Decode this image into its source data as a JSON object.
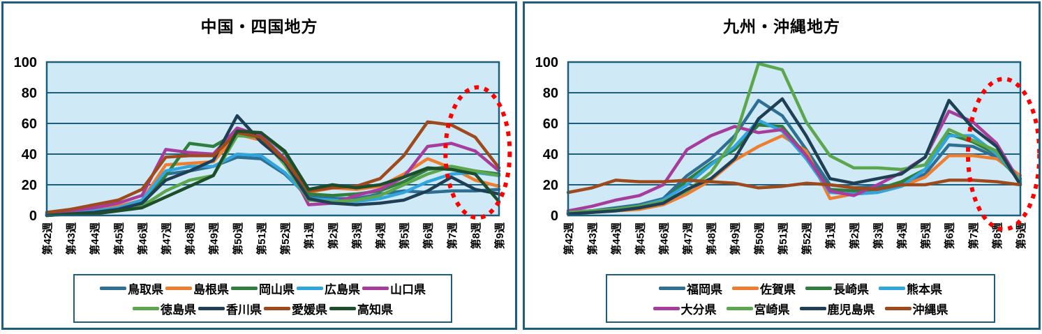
{
  "colors": {
    "panel_border": "#1C5E7C",
    "plot_background": "#CFEAF6",
    "gridline": "#1C5E7C",
    "annotation_red": "#FF0000",
    "text": "#000000"
  },
  "chart_data": [
    {
      "type": "line",
      "title": "中国・四国地方",
      "categories": [
        "第42週",
        "第43週",
        "第44週",
        "第45週",
        "第46週",
        "第47週",
        "第48週",
        "第49週",
        "第50週",
        "第51週",
        "第52週",
        "第1週",
        "第2週",
        "第3週",
        "第4週",
        "第5週",
        "第6週",
        "第7週",
        "第8週",
        "第9週"
      ],
      "ylim": [
        0,
        100
      ],
      "y_ticks": [
        0,
        20,
        40,
        60,
        80,
        100
      ],
      "grid": true,
      "legend_position": "bottom",
      "legend_rows": [
        5,
        4
      ],
      "series": [
        {
          "name": "鳥取県",
          "color": "#2E6F93",
          "values": [
            1,
            2,
            3,
            5,
            9,
            27,
            29,
            32,
            38,
            37,
            27,
            12,
            11,
            11,
            14,
            16,
            15,
            16,
            16,
            17
          ]
        },
        {
          "name": "島根県",
          "color": "#ED7D31",
          "values": [
            2,
            3,
            4,
            6,
            10,
            33,
            34,
            35,
            53,
            49,
            34,
            15,
            18,
            17,
            19,
            27,
            37,
            31,
            23,
            19
          ]
        },
        {
          "name": "岡山県",
          "color": "#2F7E3E",
          "values": [
            1,
            2,
            2,
            4,
            7,
            26,
            47,
            45,
            54,
            54,
            41,
            14,
            13,
            14,
            16,
            22,
            30,
            32,
            29,
            27
          ]
        },
        {
          "name": "広島県",
          "color": "#31A5DE",
          "values": [
            1,
            2,
            3,
            5,
            10,
            29,
            32,
            32,
            40,
            39,
            28,
            11,
            10,
            9,
            11,
            15,
            22,
            27,
            28,
            26
          ]
        },
        {
          "name": "山口県",
          "color": "#A73C9C",
          "values": [
            1,
            3,
            5,
            8,
            13,
            43,
            41,
            40,
            57,
            52,
            37,
            7,
            8,
            13,
            17,
            25,
            45,
            47,
            42,
            29
          ]
        },
        {
          "name": "徳島県",
          "color": "#5CA64E",
          "values": [
            0,
            1,
            2,
            4,
            6,
            16,
            23,
            26,
            52,
            51,
            33,
            10,
            9,
            10,
            13,
            20,
            27,
            32,
            29,
            26
          ]
        },
        {
          "name": "香川県",
          "color": "#1F4054",
          "values": [
            0,
            1,
            2,
            4,
            8,
            23,
            29,
            36,
            65,
            48,
            35,
            11,
            8,
            7,
            8,
            10,
            16,
            25,
            17,
            14
          ]
        },
        {
          "name": "愛媛県",
          "color": "#9E4A1C",
          "values": [
            2,
            4,
            7,
            10,
            17,
            38,
            39,
            39,
            54,
            51,
            36,
            16,
            18,
            19,
            24,
            39,
            61,
            59,
            51,
            31
          ]
        },
        {
          "name": "高知県",
          "color": "#1E4D2B",
          "values": [
            0,
            1,
            1,
            3,
            5,
            12,
            19,
            26,
            55,
            54,
            42,
            17,
            20,
            18,
            20,
            25,
            31,
            30,
            27,
            9
          ]
        }
      ],
      "annotation": {
        "shape": "ellipse",
        "style": "dotted",
        "color": "#FF0000",
        "center_category_index": 18.1,
        "radius_categories": 1.35,
        "center_value": 41,
        "radius_value": 42.5
      }
    },
    {
      "type": "line",
      "title": "九州・沖縄地方",
      "categories": [
        "第42週",
        "第43週",
        "第44週",
        "第45週",
        "第46週",
        "第47週",
        "第48週",
        "第49週",
        "第50週",
        "第51週",
        "第52週",
        "第1週",
        "第2週",
        "第3週",
        "第4週",
        "第5週",
        "第6週",
        "第7週",
        "第8週",
        "第9週"
      ],
      "ylim": [
        0,
        100
      ],
      "y_ticks": [
        0,
        20,
        40,
        60,
        80,
        100
      ],
      "grid": true,
      "legend_position": "bottom",
      "legend_rows": [
        4,
        4
      ],
      "series": [
        {
          "name": "福岡県",
          "color": "#2E6F93",
          "values": [
            2,
            3,
            5,
            7,
            11,
            26,
            37,
            52,
            75,
            65,
            43,
            20,
            18,
            19,
            20,
            27,
            46,
            45,
            38,
            24
          ]
        },
        {
          "name": "佐賀県",
          "color": "#ED7D31",
          "values": [
            1,
            2,
            3,
            4,
            7,
            14,
            23,
            36,
            45,
            52,
            42,
            11,
            14,
            15,
            19,
            25,
            39,
            39,
            37,
            26
          ]
        },
        {
          "name": "長崎県",
          "color": "#2F7E3E",
          "values": [
            2,
            3,
            4,
            6,
            9,
            23,
            34,
            43,
            59,
            58,
            39,
            17,
            16,
            17,
            22,
            30,
            53,
            48,
            40,
            22
          ]
        },
        {
          "name": "熊本県",
          "color": "#31A5DE",
          "values": [
            2,
            3,
            4,
            6,
            10,
            20,
            33,
            45,
            62,
            55,
            37,
            15,
            14,
            15,
            19,
            30,
            52,
            52,
            40,
            23
          ]
        },
        {
          "name": "大分県",
          "color": "#A73C9C",
          "values": [
            3,
            6,
            10,
            13,
            20,
            43,
            52,
            58,
            54,
            56,
            39,
            16,
            13,
            20,
            28,
            38,
            68,
            61,
            47,
            21
          ]
        },
        {
          "name": "宮崎県",
          "color": "#5CA64E",
          "values": [
            2,
            3,
            4,
            6,
            9,
            16,
            28,
            50,
            99,
            95,
            61,
            39,
            31,
            31,
            30,
            33,
            56,
            49,
            42,
            22
          ]
        },
        {
          "name": "鹿児島県",
          "color": "#1F4054",
          "values": [
            1,
            2,
            3,
            5,
            8,
            17,
            24,
            37,
            63,
            76,
            52,
            24,
            21,
            24,
            27,
            38,
            75,
            57,
            45,
            20
          ]
        },
        {
          "name": "沖縄県",
          "color": "#9E4A1C",
          "values": [
            15,
            18,
            23,
            22,
            22,
            23,
            22,
            21,
            18,
            19,
            21,
            20,
            18,
            17,
            20,
            20,
            23,
            23,
            22,
            20
          ]
        }
      ],
      "annotation": {
        "shape": "ellipse",
        "style": "dotted",
        "color": "#FF0000",
        "center_category_index": 18.3,
        "radius_categories": 1.5,
        "center_value": 40,
        "radius_value": 49
      }
    }
  ]
}
